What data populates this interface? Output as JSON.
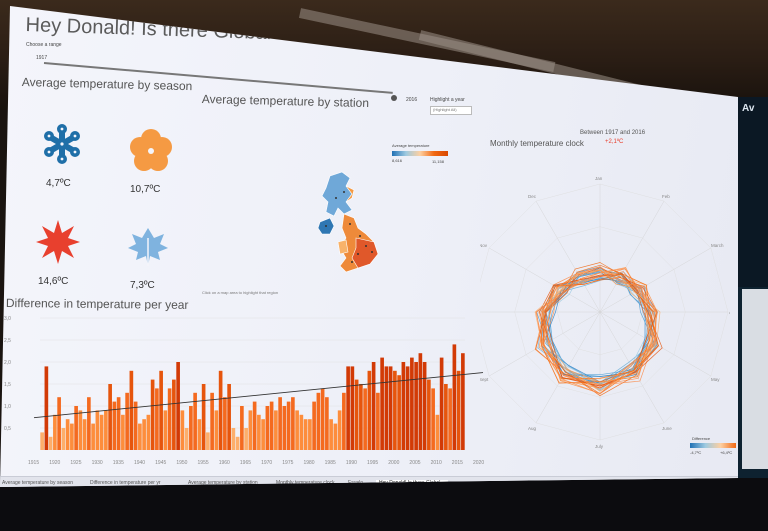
{
  "dashboard": {
    "title": "Hey Donald! Is there Global Warming in the UK?",
    "range_label": "Choose a range",
    "range_start": "1917",
    "range_end": "2016",
    "highlight_label": "Highlight a year",
    "highlight_value": "(Highlight All)"
  },
  "seasons": {
    "title": "Average temperature by season",
    "items": [
      {
        "icon": "snowflake-icon",
        "value": "4,7ºC",
        "color": "#1f6fa8"
      },
      {
        "icon": "flower-icon",
        "value": "10,7ºC",
        "color": "#f59a43"
      },
      {
        "icon": "sun-icon",
        "value": "14,6ºC",
        "color": "#e8402e"
      },
      {
        "icon": "leaf-icon",
        "value": "7,3ºC",
        "color": "#6fa8d8"
      }
    ]
  },
  "station_map": {
    "title": "Average temperature by station",
    "legend_title": "Average temperature",
    "legend_min": "8,616",
    "legend_max": "11,158",
    "note": "Click on a map area to highlight that region"
  },
  "clock": {
    "between": "Between 1917 and 2016",
    "change": "+2,1ºC",
    "title": "Monthly temperature clock",
    "months": [
      "Jan",
      "Feb",
      "March",
      "Apr",
      "May",
      "June",
      "July",
      "Aug",
      "Sept",
      "Oct",
      "Nov",
      "Dec"
    ],
    "legend_title": "Difference",
    "legend_min": "-4,7ºC",
    "legend_max": "+6,4ºC"
  },
  "yearly": {
    "title": "Difference in temperature per year"
  },
  "chart_data": {
    "type": "bar",
    "title": "Difference in temperature per year",
    "xlabel": "",
    "ylabel": "",
    "x": [
      1917,
      1918,
      1919,
      1920,
      1921,
      1922,
      1923,
      1924,
      1925,
      1926,
      1927,
      1928,
      1929,
      1930,
      1931,
      1932,
      1933,
      1934,
      1935,
      1936,
      1937,
      1938,
      1939,
      1940,
      1941,
      1942,
      1943,
      1944,
      1945,
      1946,
      1947,
      1948,
      1949,
      1950,
      1951,
      1952,
      1953,
      1954,
      1955,
      1956,
      1957,
      1958,
      1959,
      1960,
      1961,
      1962,
      1963,
      1964,
      1965,
      1966,
      1967,
      1968,
      1969,
      1970,
      1971,
      1972,
      1973,
      1974,
      1975,
      1976,
      1977,
      1978,
      1979,
      1980,
      1981,
      1982,
      1983,
      1984,
      1985,
      1986,
      1987,
      1988,
      1989,
      1990,
      1991,
      1992,
      1993,
      1994,
      1995,
      1996,
      1997,
      1998,
      1999,
      2000,
      2001,
      2002,
      2003,
      2004,
      2005,
      2006,
      2007,
      2008,
      2009,
      2010,
      2011,
      2012,
      2013,
      2014,
      2015,
      2016
    ],
    "values": [
      0.4,
      1.9,
      0.3,
      0.8,
      1.2,
      0.5,
      0.7,
      0.6,
      1.0,
      0.9,
      0.7,
      1.2,
      0.6,
      0.9,
      0.8,
      0.9,
      1.5,
      1.1,
      1.2,
      0.8,
      1.3,
      1.8,
      1.1,
      0.6,
      0.7,
      0.8,
      1.6,
      1.4,
      1.8,
      0.9,
      1.4,
      1.6,
      2.0,
      0.9,
      0.5,
      1.0,
      1.3,
      0.7,
      1.5,
      0.4,
      1.3,
      0.9,
      1.8,
      1.2,
      1.5,
      0.5,
      0.3,
      1.0,
      0.5,
      0.9,
      1.1,
      0.8,
      0.7,
      1.0,
      1.1,
      0.9,
      1.2,
      1.0,
      1.1,
      1.2,
      0.9,
      0.8,
      0.7,
      0.7,
      1.1,
      1.3,
      1.4,
      1.2,
      0.7,
      0.6,
      0.9,
      1.3,
      1.9,
      1.9,
      1.6,
      1.5,
      1.4,
      1.8,
      2.0,
      1.3,
      2.1,
      1.9,
      1.9,
      1.8,
      1.7,
      2.0,
      1.9,
      2.1,
      2.0,
      2.2,
      2.0,
      1.6,
      1.4,
      0.8,
      2.1,
      1.5,
      1.4,
      2.4,
      1.8,
      2.2
    ],
    "yticks": [
      "3,0",
      "2,5",
      "2,0",
      "1,5",
      "1,0",
      "0,5"
    ],
    "xticks": [
      "1915",
      "1920",
      "1925",
      "1930",
      "1935",
      "1940",
      "1945",
      "1950",
      "1955",
      "1960",
      "1965",
      "1970",
      "1975",
      "1980",
      "1985",
      "1990",
      "1995",
      "2000",
      "2005",
      "2010",
      "2015",
      "2020"
    ],
    "trend": "linear",
    "ylim": [
      0,
      3
    ]
  },
  "tabs": [
    "Average temperature by season",
    "Difference in temperature per yr",
    "Average temperature by station",
    "Monthly temperature clock",
    "Favelo",
    "Hey Donald! Is there Global..."
  ],
  "side_panel": {
    "label": "Av"
  }
}
